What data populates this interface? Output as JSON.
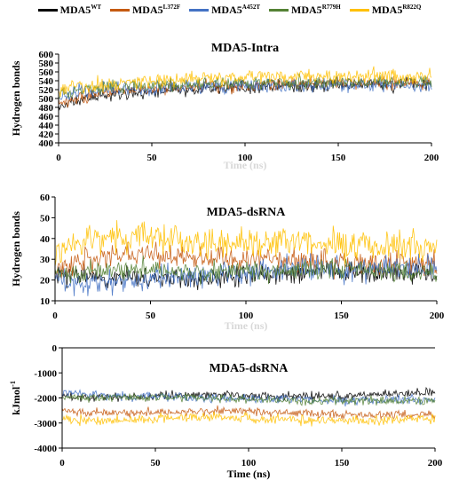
{
  "legend": [
    {
      "base": "MDA5",
      "sup": "WT",
      "color": "#000000"
    },
    {
      "base": "MDA5",
      "sup": "L372F",
      "color": "#c55a11"
    },
    {
      "base": "MDA5",
      "sup": "A452T",
      "color": "#4472c4"
    },
    {
      "base": "MDA5",
      "sup": "R779H",
      "color": "#548235"
    },
    {
      "base": "MDA5",
      "sup": "R822Q",
      "color": "#ffc000"
    }
  ],
  "chart_data": [
    {
      "type": "line",
      "title": "MDA5-Intra",
      "xlabel": "Time (ns)",
      "ylabel": "Hydrogen bonds",
      "xlim": [
        0,
        200
      ],
      "ylim": [
        400,
        600
      ],
      "xticks": [
        0,
        50,
        100,
        150,
        200
      ],
      "yticks": [
        400,
        420,
        440,
        460,
        480,
        500,
        520,
        540,
        560,
        580,
        600
      ],
      "series": [
        {
          "name": "MDA5 WT",
          "x": [
            0,
            10,
            20,
            30,
            50,
            75,
            100,
            125,
            150,
            175,
            200
          ],
          "y": [
            480,
            495,
            505,
            510,
            515,
            520,
            525,
            528,
            530,
            532,
            532
          ]
        },
        {
          "name": "MDA5 L372F",
          "x": [
            0,
            10,
            20,
            30,
            50,
            75,
            100,
            125,
            150,
            175,
            200
          ],
          "y": [
            485,
            500,
            510,
            515,
            520,
            525,
            530,
            532,
            535,
            535,
            535
          ]
        },
        {
          "name": "MDA5 A452T",
          "x": [
            0,
            10,
            20,
            30,
            50,
            75,
            100,
            125,
            150,
            175,
            200
          ],
          "y": [
            505,
            515,
            518,
            520,
            522,
            525,
            528,
            528,
            530,
            530,
            528
          ]
        },
        {
          "name": "MDA5 R779H",
          "x": [
            0,
            10,
            20,
            30,
            50,
            75,
            100,
            125,
            150,
            175,
            200
          ],
          "y": [
            510,
            520,
            525,
            528,
            530,
            532,
            535,
            537,
            538,
            538,
            537
          ]
        },
        {
          "name": "MDA5 R822Q",
          "x": [
            0,
            10,
            20,
            30,
            50,
            75,
            100,
            125,
            150,
            175,
            200
          ],
          "y": [
            515,
            525,
            530,
            535,
            540,
            545,
            548,
            550,
            550,
            550,
            548
          ]
        }
      ]
    },
    {
      "type": "line",
      "title": "MDA5-dsRNA",
      "xlabel": "Time (ns)",
      "ylabel": "Hydrogen bonds",
      "xlim": [
        0,
        200
      ],
      "ylim": [
        10,
        60
      ],
      "xticks": [
        0,
        50,
        100,
        150,
        200
      ],
      "yticks": [
        10,
        20,
        30,
        40,
        50,
        60
      ],
      "series": [
        {
          "name": "MDA5 WT",
          "x": [
            0,
            20,
            40,
            60,
            80,
            100,
            120,
            140,
            160,
            180,
            200
          ],
          "y": [
            22,
            22,
            21,
            21,
            21,
            22,
            23,
            24,
            24,
            24,
            23
          ]
        },
        {
          "name": "MDA5 L372F",
          "x": [
            0,
            20,
            40,
            60,
            80,
            100,
            120,
            140,
            160,
            180,
            200
          ],
          "y": [
            24,
            30,
            33,
            31,
            30,
            30,
            29,
            29,
            28,
            28,
            28
          ]
        },
        {
          "name": "MDA5 A452T",
          "x": [
            0,
            20,
            40,
            60,
            80,
            100,
            120,
            140,
            160,
            180,
            200
          ],
          "y": [
            18,
            19,
            20,
            21,
            23,
            24,
            25,
            25,
            25,
            25,
            25
          ]
        },
        {
          "name": "MDA5 R779H",
          "x": [
            0,
            20,
            40,
            60,
            80,
            100,
            120,
            140,
            160,
            180,
            200
          ],
          "y": [
            23,
            24,
            25,
            25,
            24,
            24,
            24,
            25,
            25,
            24,
            24
          ]
        },
        {
          "name": "MDA5 R822Q",
          "x": [
            0,
            20,
            40,
            60,
            80,
            100,
            120,
            140,
            160,
            180,
            200
          ],
          "y": [
            32,
            40,
            41,
            40,
            38,
            37,
            38,
            38,
            37,
            37,
            37
          ]
        }
      ]
    },
    {
      "type": "line",
      "title": "MDA5-dsRNA",
      "xlabel": "Time (ns)",
      "ylabel": "kJmol-1",
      "ylabel_base": "kJmol",
      "ylabel_sup": "-1",
      "xlim": [
        0,
        200
      ],
      "ylim": [
        -4000,
        0
      ],
      "xticks": [
        0,
        50,
        100,
        150,
        200
      ],
      "yticks": [
        -4000,
        -3000,
        -2000,
        -1000,
        0
      ],
      "series": [
        {
          "name": "MDA5 WT",
          "x": [
            0,
            20,
            40,
            60,
            80,
            100,
            120,
            140,
            160,
            180,
            200
          ],
          "y": [
            -2000,
            -1950,
            -1950,
            -1900,
            -1850,
            -1900,
            -1950,
            -1950,
            -1900,
            -1850,
            -1800
          ]
        },
        {
          "name": "MDA5 L372F",
          "x": [
            0,
            20,
            40,
            60,
            80,
            100,
            120,
            140,
            160,
            180,
            200
          ],
          "y": [
            -2500,
            -2600,
            -2600,
            -2550,
            -2500,
            -2550,
            -2600,
            -2650,
            -2700,
            -2650,
            -2650
          ]
        },
        {
          "name": "MDA5 A452T",
          "x": [
            0,
            20,
            40,
            60,
            80,
            100,
            120,
            140,
            160,
            180,
            200
          ],
          "y": [
            -1800,
            -1900,
            -1950,
            -1950,
            -2000,
            -2050,
            -2050,
            -2100,
            -2100,
            -2050,
            -2050
          ]
        },
        {
          "name": "MDA5 R779H",
          "x": [
            0,
            20,
            40,
            60,
            80,
            100,
            120,
            140,
            160,
            180,
            200
          ],
          "y": [
            -2000,
            -2000,
            -2000,
            -1950,
            -2000,
            -2050,
            -2100,
            -2100,
            -2150,
            -2100,
            -2100
          ]
        },
        {
          "name": "MDA5 R822Q",
          "x": [
            0,
            20,
            40,
            60,
            80,
            100,
            120,
            140,
            160,
            180,
            200
          ],
          "y": [
            -2800,
            -2900,
            -2850,
            -2800,
            -2750,
            -2800,
            -2850,
            -2900,
            -2900,
            -2850,
            -2850
          ]
        }
      ]
    }
  ]
}
